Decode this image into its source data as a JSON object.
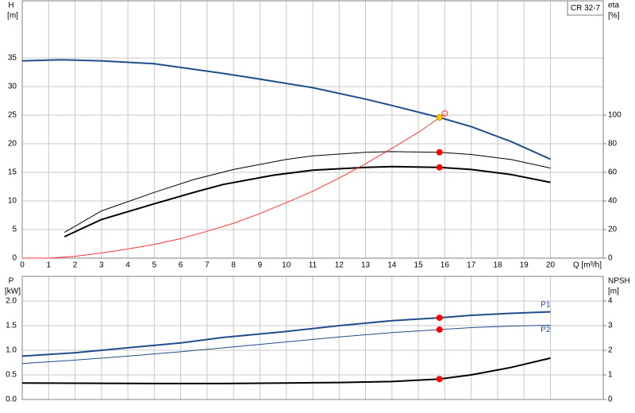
{
  "chart_data": [
    {
      "type": "line",
      "title": "CR 32-7",
      "y_label": "H",
      "y_unit": "[m]",
      "y2_label": "eta",
      "y2_unit": "[%]",
      "x_label": "Q [m³/h]",
      "xlim": [
        0,
        22
      ],
      "xticks": [
        0,
        1,
        2,
        3,
        4,
        5,
        6,
        7,
        8,
        9,
        10,
        11,
        12,
        13,
        14,
        15,
        16,
        17,
        18,
        19,
        20
      ],
      "ylim": [
        0,
        45
      ],
      "yticks": [
        0,
        5,
        10,
        15,
        20,
        25,
        30,
        35
      ],
      "y2lim": [
        0,
        180
      ],
      "y2ticks": [
        0,
        20,
        40,
        60,
        80,
        100
      ],
      "grid": true,
      "series": [
        {
          "color": "#1f4e8c",
          "line_width": 2,
          "x": [
            0,
            1.5,
            3,
            5,
            7.6,
            9,
            11,
            13,
            14,
            15.8,
            17,
            18.5,
            20
          ],
          "values": [
            34.5,
            34.7,
            34.5,
            34,
            32.3,
            31.3,
            29.8,
            27.8,
            26.7,
            24.6,
            23,
            20.4,
            17.3
          ]
        },
        {
          "color": "#000000",
          "line_width": 1,
          "axis": "y2",
          "x": [
            1.6,
            3,
            5,
            6.5,
            8,
            10,
            11,
            13,
            14,
            15.8,
            17,
            18.5,
            20
          ],
          "values": [
            18,
            33,
            46,
            55,
            62,
            69,
            71.5,
            74,
            74.5,
            74,
            72.5,
            69,
            63
          ]
        },
        {
          "color": "#000000",
          "line_width": 2,
          "axis": "y2",
          "x": [
            1.6,
            3,
            5,
            6.5,
            7.6,
            9.5,
            11,
            13,
            14,
            15.8,
            17,
            18.5,
            20
          ],
          "values": [
            15,
            27,
            38,
            46,
            51.5,
            58,
            61.5,
            63.5,
            64,
            63.5,
            62,
            58.5,
            53
          ]
        },
        {
          "color": "#ff3333",
          "line_width": 1,
          "x": [
            0,
            1,
            2,
            3,
            4,
            5,
            6,
            7,
            8,
            9,
            10,
            11,
            12,
            13,
            14,
            15,
            16
          ],
          "values": [
            0,
            0,
            0.3,
            0.9,
            1.6,
            2.4,
            3.4,
            4.7,
            6.1,
            7.8,
            9.7,
            11.7,
            14,
            16.5,
            19.2,
            22,
            25.2
          ]
        }
      ],
      "markers": [
        {
          "x": 15.8,
          "value": 24.6,
          "color": "#ffcc00"
        },
        {
          "x": 16,
          "value": 25.3,
          "color": "#ff3333",
          "fill": "none"
        },
        {
          "x": 15.8,
          "value": 74,
          "axis": "y2",
          "color": "#ff0000"
        },
        {
          "x": 15.8,
          "value": 63.5,
          "axis": "y2",
          "color": "#ff0000"
        }
      ]
    },
    {
      "type": "line",
      "y_label": "P",
      "y_unit": "[kW]",
      "y2_label": "NPSH",
      "y2_unit": "[m]",
      "xlim": [
        0,
        22
      ],
      "xticks": [
        0,
        1,
        2,
        3,
        4,
        5,
        6,
        7,
        8,
        9,
        10,
        11,
        12,
        13,
        14,
        15,
        16,
        17,
        18,
        19,
        20
      ],
      "ylim": [
        0,
        2.5
      ],
      "yticks": [
        {
          "value": 0,
          "label": "0.0"
        },
        0.5,
        {
          "value": 1,
          "label": "1.0"
        },
        1.5,
        {
          "value": 2,
          "label": "2.0"
        }
      ],
      "y2lim": [
        0,
        5
      ],
      "y2ticks": [
        0,
        1,
        2,
        3,
        4
      ],
      "grid": true,
      "series": [
        {
          "name": "P1",
          "color": "#1f4e8c",
          "line_width": 2,
          "label_position": "above",
          "x": [
            0,
            2,
            4,
            6,
            7.6,
            10,
            12,
            14,
            15.8,
            17,
            18.5,
            20
          ],
          "values": [
            0.88,
            0.95,
            1.05,
            1.15,
            1.26,
            1.38,
            1.5,
            1.6,
            1.66,
            1.71,
            1.75,
            1.78
          ]
        },
        {
          "name": "P2",
          "color": "#1f4e8c",
          "line_width": 1,
          "label_position": "below",
          "x": [
            0,
            2,
            4,
            6,
            8,
            10,
            12,
            14,
            15.8,
            17,
            18.5,
            20
          ],
          "values": [
            0.73,
            0.8,
            0.88,
            0.97,
            1.07,
            1.17,
            1.27,
            1.36,
            1.42,
            1.46,
            1.49,
            1.51
          ]
        },
        {
          "color": "#000000",
          "line_width": 2,
          "axis": "y2",
          "x": [
            0,
            5,
            7.6,
            10,
            12,
            14,
            15.8,
            17,
            18.5,
            20
          ],
          "values": [
            0.67,
            0.65,
            0.65,
            0.67,
            0.69,
            0.73,
            0.83,
            1,
            1.3,
            1.68
          ]
        }
      ],
      "markers": [
        {
          "x": 15.8,
          "value": 1.66,
          "color": "#ff0000"
        },
        {
          "x": 15.8,
          "value": 1.42,
          "color": "#ff0000"
        },
        {
          "x": 15.8,
          "value": 0.83,
          "axis": "y2",
          "color": "#ff0000"
        }
      ]
    }
  ]
}
